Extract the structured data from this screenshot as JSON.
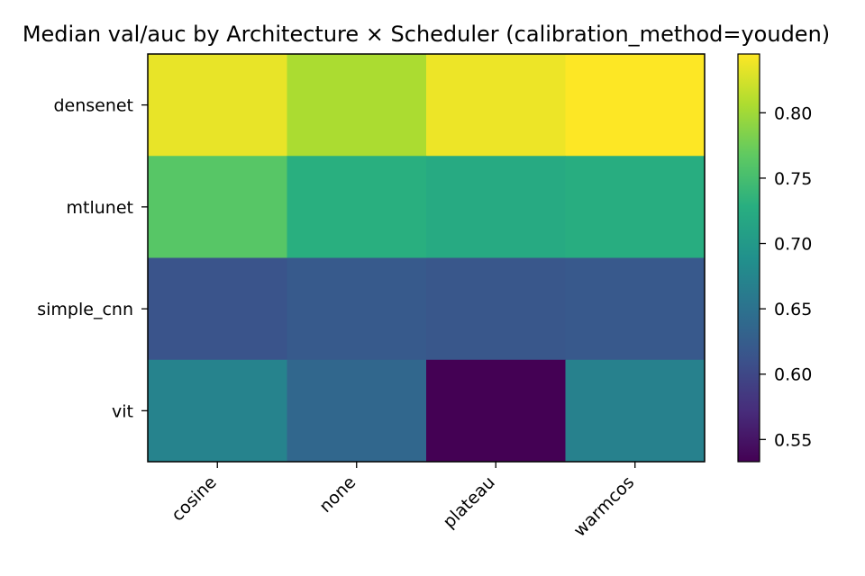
{
  "chart_data": {
    "type": "heatmap",
    "title": "Median val/auc by Architecture × Scheduler  (calibration_method=youden)",
    "xlabel": "",
    "ylabel": "",
    "rows": [
      "densenet",
      "mtlunet",
      "simple_cnn",
      "vit"
    ],
    "columns": [
      "cosine",
      "none",
      "plateau",
      "warmcos"
    ],
    "values": [
      [
        0.835,
        0.805,
        0.837,
        0.845
      ],
      [
        0.762,
        0.729,
        0.723,
        0.727
      ],
      [
        0.613,
        0.621,
        0.617,
        0.62
      ],
      [
        0.671,
        0.637,
        0.533,
        0.669
      ]
    ],
    "colorscale": "viridis",
    "colorbar": {
      "vmin": 0.533,
      "vmax": 0.845,
      "ticks": [
        0.55,
        0.6,
        0.65,
        0.7,
        0.75,
        0.8
      ],
      "tick_labels": [
        "0.55",
        "0.60",
        "0.65",
        "0.70",
        "0.75",
        "0.80"
      ]
    },
    "grid": false
  }
}
